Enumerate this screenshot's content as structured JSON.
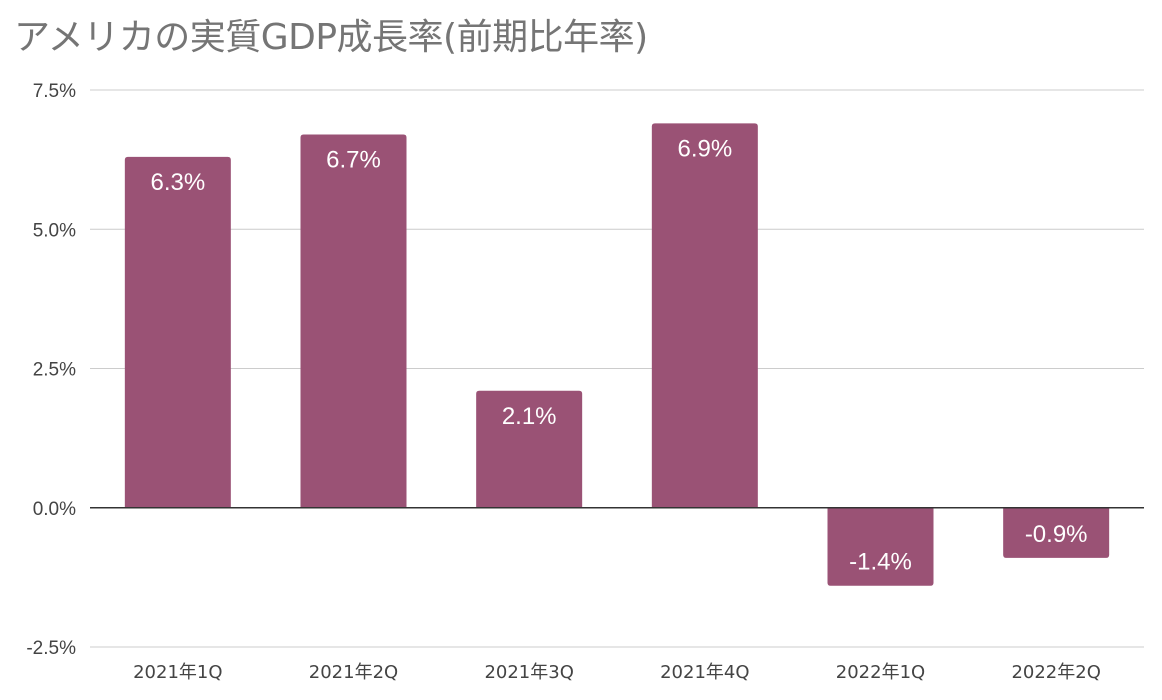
{
  "chart_data": {
    "type": "bar",
    "title": "アメリカの実質GDP成長率(前期比年率)",
    "categories": [
      "2021年1Q",
      "2021年2Q",
      "2021年3Q",
      "2021年4Q",
      "2022年1Q",
      "2022年2Q"
    ],
    "series": [
      {
        "values": [
          6.3,
          6.7,
          2.1,
          6.9,
          -1.4,
          -0.9
        ],
        "data_labels": [
          "6.3%",
          "6.7%",
          "2.1%",
          "6.9%",
          "-1.4%",
          "-0.9%"
        ]
      }
    ],
    "ylim": [
      -2.5,
      7.5
    ],
    "yticks": [
      7.5,
      5.0,
      2.5,
      0.0,
      -2.5
    ],
    "ytick_labels": [
      "7.5%",
      "5.0%",
      "2.5%",
      "0.0%",
      "-2.5%"
    ],
    "xlabel": "",
    "ylabel": "",
    "grid": true,
    "legend": "none",
    "bar_color": "#9a5275",
    "grid_color": "#cccccc",
    "zero_line_color": "#333333"
  }
}
